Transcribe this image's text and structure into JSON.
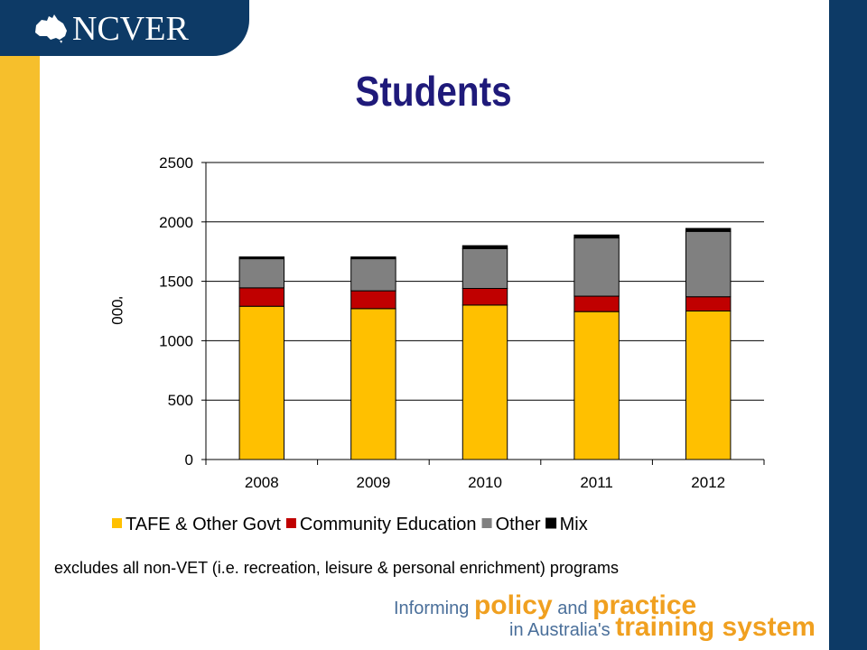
{
  "brand": {
    "logo_text": "NCVER",
    "colors": {
      "navy": "#0d3a66",
      "gold": "#f6bf2c",
      "title": "#1f1a7a"
    }
  },
  "slide": {
    "title": "Students",
    "note": "excludes all non-VET (i.e. recreation, leisure & personal enrichment) programs",
    "tagline": {
      "part1": "Informing ",
      "policy": "policy",
      "and": " and ",
      "practice": "practice",
      "part2": "in Australia's ",
      "training_system": "training system"
    }
  },
  "chart_data": {
    "type": "bar",
    "stacked": true,
    "title": "",
    "xlabel": "",
    "ylabel": "'000",
    "ylim": [
      0,
      2500
    ],
    "yticks": [
      0,
      500,
      1000,
      1500,
      2000,
      2500
    ],
    "categories": [
      "2008",
      "2009",
      "2010",
      "2011",
      "2012"
    ],
    "series": [
      {
        "name": "TAFE & Other Govt",
        "color": "#ffc000",
        "values": [
          1290,
          1270,
          1300,
          1245,
          1250
        ]
      },
      {
        "name": "Community Education",
        "color": "#c00000",
        "values": [
          155,
          150,
          140,
          130,
          120
        ]
      },
      {
        "name": "Other",
        "color": "#808080",
        "values": [
          245,
          270,
          335,
          490,
          550
        ]
      },
      {
        "name": "Mix",
        "color": "#000000",
        "values": [
          15,
          15,
          25,
          25,
          25
        ]
      }
    ],
    "grid": true,
    "legend": "bottom"
  }
}
